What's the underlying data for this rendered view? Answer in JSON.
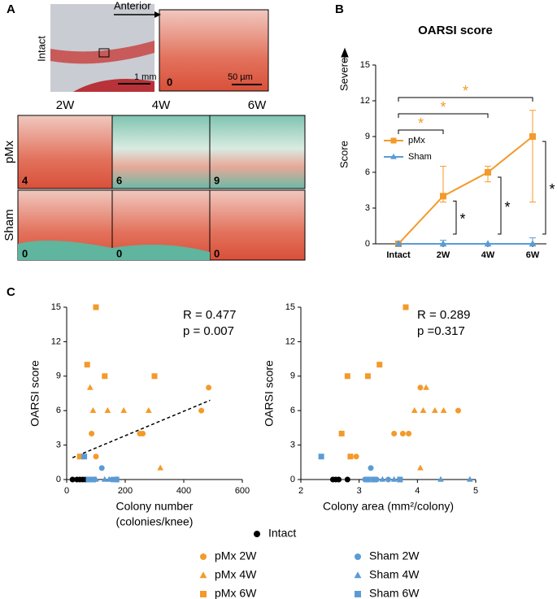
{
  "panel_labels": [
    "A",
    "B",
    "C"
  ],
  "panel_a": {
    "anterior": "Anterior",
    "intact": "Intact",
    "scale_1": "1 mm",
    "scale_2": "50 µm",
    "intact_score": 0,
    "columns": [
      "2W",
      "4W",
      "6W"
    ],
    "rows": [
      {
        "label": "pMx",
        "scores": [
          4,
          6,
          9
        ]
      },
      {
        "label": "Sham",
        "scores": [
          0,
          0,
          0
        ]
      }
    ]
  },
  "chart_data": [
    {
      "type": "line",
      "title": "OARSI score",
      "ylabel": "Score",
      "annotation": "Severe",
      "categories": [
        "Intact",
        "2W",
        "4W",
        "6W"
      ],
      "ylim": [
        0,
        15
      ],
      "yticks": [
        0,
        3,
        6,
        9,
        12,
        15
      ],
      "series": [
        {
          "name": "pMx",
          "color": "#f39a2a",
          "marker": "square",
          "values": [
            0,
            4,
            6,
            9
          ],
          "error_upper": [
            0,
            2.5,
            0.5,
            2.2
          ],
          "error_lower": [
            0,
            0.5,
            0.8,
            5.5
          ]
        },
        {
          "name": "Sham",
          "color": "#5b9bd5",
          "marker": "triangle",
          "values": [
            0,
            0,
            0,
            0
          ],
          "error_upper": [
            0,
            0.3,
            0,
            0.5
          ],
          "error_lower": [
            0,
            0,
            0,
            0
          ]
        }
      ],
      "significance_top": [
        "*",
        "*",
        "*"
      ],
      "significance_side": [
        "*",
        "*",
        "*"
      ]
    },
    {
      "type": "scatter",
      "ylabel": "OARSI score",
      "xlabel": [
        "Colony number",
        "(colonies/knee)"
      ],
      "xlim": [
        0,
        600
      ],
      "xticks": [
        0,
        200,
        400,
        600
      ],
      "ylim": [
        0,
        15
      ],
      "yticks": [
        0,
        3,
        6,
        9,
        12,
        15
      ],
      "annotations": [
        "R = 0.477",
        "p  = 0.007"
      ],
      "trendline": {
        "x": [
          20,
          490
        ],
        "y": [
          1.9,
          6.9
        ]
      },
      "series": [
        {
          "name": "Intact",
          "color": "#000000",
          "marker": "circle",
          "x": [
            20,
            35,
            45,
            55,
            65
          ],
          "values": [
            0,
            0,
            0,
            0,
            0
          ]
        },
        {
          "name": "pMx 2W",
          "color": "#f39a2a",
          "marker": "circle",
          "x": [
            85,
            100,
            250,
            260,
            460,
            485
          ],
          "values": [
            4,
            2,
            4,
            4,
            6,
            8
          ]
        },
        {
          "name": "pMx 4W",
          "color": "#f39a2a",
          "marker": "triangle",
          "x": [
            80,
            90,
            140,
            195,
            280,
            320
          ],
          "values": [
            8,
            6,
            6,
            6,
            6,
            1
          ]
        },
        {
          "name": "pMx 6W",
          "color": "#f39a2a",
          "marker": "square",
          "x": [
            45,
            70,
            100,
            130,
            300
          ],
          "values": [
            2,
            10,
            15,
            9,
            9
          ]
        },
        {
          "name": "Sham 2W",
          "color": "#5b9bd5",
          "marker": "circle",
          "x": [
            80,
            120,
            155,
            165
          ],
          "values": [
            0,
            1,
            0,
            0
          ]
        },
        {
          "name": "Sham 4W",
          "color": "#5b9bd5",
          "marker": "triangle",
          "x": [
            100,
            130,
            145,
            170
          ],
          "values": [
            0,
            0,
            0,
            0
          ]
        },
        {
          "name": "Sham 6W",
          "color": "#5b9bd5",
          "marker": "square",
          "x": [
            60,
            75,
            90,
            170
          ],
          "values": [
            2,
            0,
            0,
            0
          ]
        }
      ]
    },
    {
      "type": "scatter",
      "ylabel": "OARSI score",
      "xlabel": [
        "Colony area  (mm²/colony)"
      ],
      "xlim": [
        2,
        5
      ],
      "xticks": [
        2,
        3,
        4,
        5
      ],
      "ylim": [
        0,
        15
      ],
      "yticks": [
        0,
        3,
        6,
        9,
        12,
        15
      ],
      "annotations": [
        "R = 0.289",
        "p =0.317"
      ],
      "series": [
        {
          "color": "#000000",
          "marker": "circle",
          "x": [
            2.55,
            2.6,
            2.65,
            2.8,
            3.7
          ],
          "values": [
            0,
            0,
            0,
            0,
            0
          ]
        },
        {
          "color": "#f39a2a",
          "marker": "circle",
          "x": [
            2.95,
            3.6,
            3.75,
            3.85,
            4.05,
            4.7
          ],
          "values": [
            2,
            4,
            4,
            4,
            8,
            6
          ]
        },
        {
          "color": "#f39a2a",
          "marker": "triangle",
          "x": [
            3.95,
            4.1,
            4.15,
            4.3,
            4.45,
            4.05
          ],
          "values": [
            6,
            6,
            8,
            6,
            6,
            1
          ]
        },
        {
          "color": "#f39a2a",
          "marker": "square",
          "x": [
            2.7,
            2.8,
            3.15,
            3.35,
            3.8,
            2.85
          ],
          "values": [
            4,
            9,
            9,
            10,
            15,
            2
          ]
        },
        {
          "color": "#5b9bd5",
          "marker": "circle",
          "x": [
            3.2,
            3.1,
            3.3,
            3.5
          ],
          "values": [
            1,
            0,
            0,
            0
          ]
        },
        {
          "color": "#5b9bd5",
          "marker": "triangle",
          "x": [
            3.4,
            3.6,
            4.4,
            4.9
          ],
          "values": [
            0,
            0,
            0,
            0
          ]
        },
        {
          "color": "#5b9bd5",
          "marker": "square",
          "x": [
            2.35,
            3.15,
            3.25,
            3.7
          ],
          "values": [
            2,
            0,
            0,
            0
          ]
        }
      ]
    }
  ]
}
